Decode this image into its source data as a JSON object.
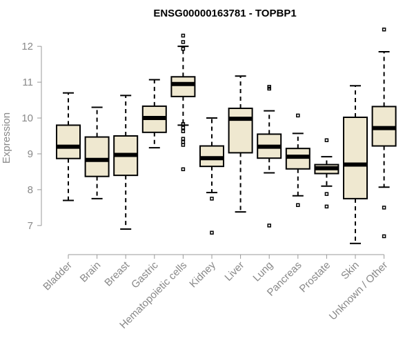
{
  "chart_data": {
    "type": "boxplot",
    "title": "ENSG00000163781 - TOPBP1",
    "ylabel": "Expression",
    "ylim": [
      6.4,
      12.6
    ],
    "yticks": [
      7,
      8,
      9,
      10,
      11,
      12
    ],
    "ytick_labels": [
      "7",
      "8",
      "9",
      "10",
      "11",
      "12"
    ],
    "box_color": "#efe8d0",
    "categories": [
      "Bladder",
      "Brain",
      "Breast",
      "Gastric",
      "Hematopoietic cells",
      "Kidney",
      "Liver",
      "Lung",
      "Pancreas",
      "Prostate",
      "Skin",
      "Unknown / Other"
    ],
    "boxes": [
      {
        "whisker_low": 7.7,
        "q1": 8.87,
        "median": 9.2,
        "q3": 9.8,
        "whisker_high": 10.7,
        "outliers": []
      },
      {
        "whisker_low": 7.75,
        "q1": 8.37,
        "median": 8.83,
        "q3": 9.47,
        "whisker_high": 10.3,
        "outliers": []
      },
      {
        "whisker_low": 6.9,
        "q1": 8.4,
        "median": 8.97,
        "q3": 9.5,
        "whisker_high": 10.63,
        "outliers": []
      },
      {
        "whisker_low": 9.17,
        "q1": 9.6,
        "median": 10.0,
        "q3": 10.33,
        "whisker_high": 11.07,
        "outliers": []
      },
      {
        "whisker_low": 9.8,
        "q1": 10.6,
        "median": 10.95,
        "q3": 11.15,
        "whisker_high": 12.0,
        "outliers": [
          12.3,
          12.12,
          11.93,
          9.83,
          9.73,
          9.63,
          9.42,
          9.33,
          9.25,
          8.57
        ]
      },
      {
        "whisker_low": 7.92,
        "q1": 8.65,
        "median": 8.88,
        "q3": 9.22,
        "whisker_high": 10.0,
        "outliers": [
          7.75,
          6.8
        ]
      },
      {
        "whisker_low": 7.38,
        "q1": 9.03,
        "median": 9.98,
        "q3": 10.27,
        "whisker_high": 11.17,
        "outliers": []
      },
      {
        "whisker_low": 8.47,
        "q1": 8.88,
        "median": 9.2,
        "q3": 9.55,
        "whisker_high": 10.2,
        "outliers": [
          10.87,
          10.82,
          7.0
        ]
      },
      {
        "whisker_low": 7.83,
        "q1": 8.58,
        "median": 8.92,
        "q3": 9.15,
        "whisker_high": 9.57,
        "outliers": [
          10.07,
          7.57
        ]
      },
      {
        "whisker_low": 8.1,
        "q1": 8.45,
        "median": 8.6,
        "q3": 8.7,
        "whisker_high": 8.92,
        "outliers": [
          9.38,
          7.88,
          7.53
        ]
      },
      {
        "whisker_low": 6.5,
        "q1": 7.75,
        "median": 8.7,
        "q3": 10.02,
        "whisker_high": 10.9,
        "outliers": []
      },
      {
        "whisker_low": 8.07,
        "q1": 9.22,
        "median": 9.72,
        "q3": 10.32,
        "whisker_high": 11.85,
        "outliers": [
          12.47,
          7.5,
          6.7
        ]
      }
    ]
  }
}
